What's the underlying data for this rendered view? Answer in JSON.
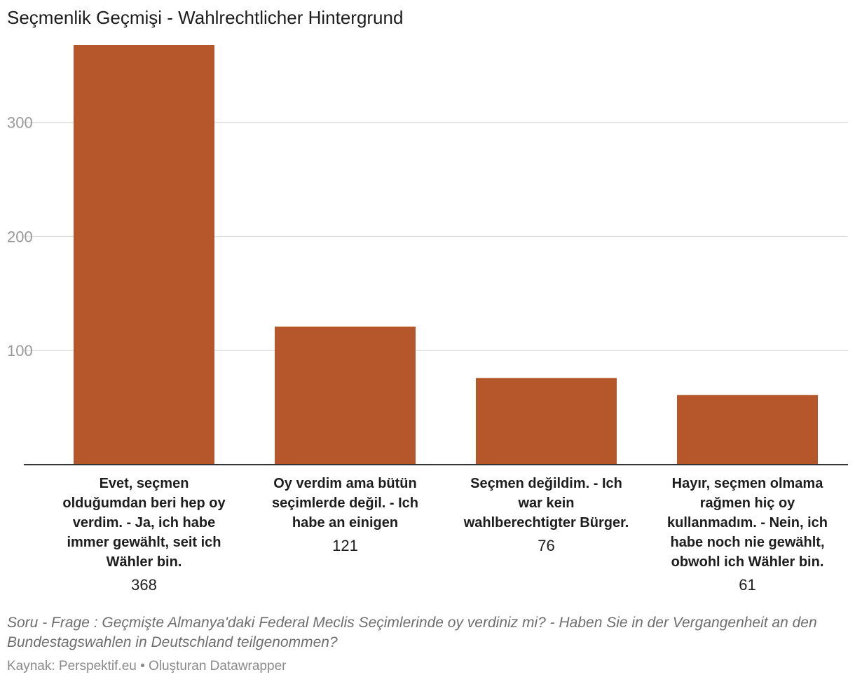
{
  "chart_data": {
    "type": "bar",
    "title": "Seçmenlik Geçmişi - Wahlrechtlicher Hintergrund",
    "categories": [
      "Evet, seçmen olduğumdan beri hep oy verdim. - Ja, ich habe immer gewählt, seit ich Wähler bin.",
      "Oy verdim ama bütün seçimlerde değil. - Ich habe an einigen",
      "Seçmen değildim. - Ich war kein wahlberechtigter Bürger.",
      "Hayır, seçmen olmama rağmen hiç oy kullanmadım. - Nein, ich habe noch nie gewählt, obwohl ich Wähler bin."
    ],
    "values": [
      368,
      121,
      76,
      61
    ],
    "value_labels": [
      "368",
      "121",
      "76",
      "61"
    ],
    "ylim": [
      0,
      368
    ],
    "yticks": [
      100,
      200,
      300
    ],
    "ytick_labels": [
      "100",
      "200",
      "300"
    ],
    "grid": true,
    "xlabel": "",
    "ylabel": "",
    "bar_color": "#b5572a",
    "notes": "Soru - Frage : Geçmişte Almanya'daki Federal Meclis Seçimlerinde oy verdiniz mi? - Haben Sie in der Vergangenheit an den Bundestagswahlen in Deutschland teilgenommen?",
    "source": "Kaynak: Perspektif.eu • Oluşturan Datawrapper"
  }
}
